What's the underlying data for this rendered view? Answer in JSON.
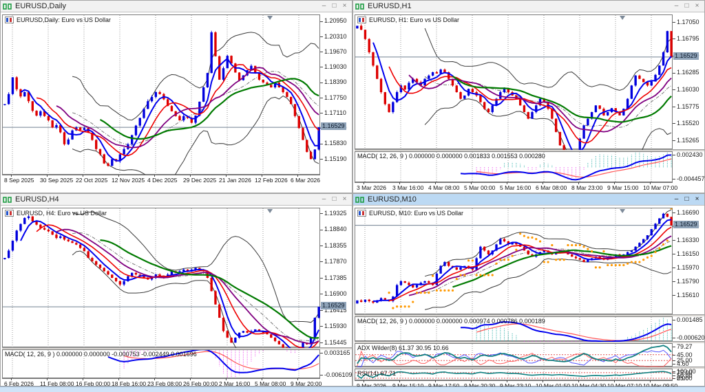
{
  "window_controls": {
    "minimize": "–",
    "maximize": "□",
    "close": "×"
  },
  "panels": [
    {
      "title": "EURUSD,Daily",
      "legend": "EURUSD,Daily:  Euro vs US Dollar",
      "active": false
    },
    {
      "title": "EURUSD,H1",
      "legend": "EURUSD, H1:  Euro vs US Dollar",
      "active": false
    },
    {
      "title": "EURUSD,H4",
      "legend": "EURUSD, H4:  Euro vs US Dollar",
      "active": false
    },
    {
      "title": "EURUSD,M10",
      "legend": "EURUSD, M10:  Euro vs US Dollar",
      "active": true
    }
  ],
  "colors": {
    "up_candle": "#0000dd",
    "down_candle": "#dd0000",
    "ma_fast": "#0000ee",
    "ma_mid": "#ee0000",
    "ma_slow1": "#800080",
    "ma_slow2": "#007a00",
    "envelope": "#3a3a3a",
    "sar": "#ff9900",
    "macd_line": "#0000ee",
    "macd_signal": "#ff5555",
    "hist_pos": "#18a8a0",
    "hist_neg": "#ee44ee",
    "adx_main": "#0f8080",
    "adx_plus": "#5858ff",
    "adx_minus": "#ff6060",
    "rsi": "#0f8080",
    "level_line": "#e05050",
    "price_line": "#708090",
    "price_tag_bg": "#8fa3b8",
    "grid": "#9a9a9a",
    "active_titlebar": "#bcd9f3"
  },
  "chart_data": [
    {
      "type": "candlestick",
      "symbol": "EURUSD",
      "timeframe": "Daily",
      "title": "EURUSD,Daily:  Euro vs US Dollar",
      "ylim": [
        1.1452,
        1.2122
      ],
      "y_ticks": [
        "1.20950",
        "1.20310",
        "1.19670",
        "1.19030",
        "1.18390",
        "1.17750",
        "1.17110",
        "1.16470",
        "1.15830",
        "1.15190"
      ],
      "x_ticks": [
        "8 Sep 2025",
        "30 Sep 2025",
        "22 Oct 2025",
        "12 Nov 2025",
        "4 Dec 2025",
        "29 Dec 2025",
        "21 Jan 2026",
        "12 Feb 2026",
        "6 Mar 2026"
      ],
      "current_price": 1.16529,
      "current_price_label": "1.16529",
      "sar": false,
      "closes": [
        1.175,
        1.1792,
        1.1862,
        1.1812,
        1.1782,
        1.18,
        1.1762,
        1.1722,
        1.1702,
        1.172,
        1.17,
        1.1682,
        1.1652,
        1.1662,
        1.1632,
        1.1582,
        1.1602,
        1.164,
        1.1652,
        1.1642,
        1.165,
        1.163,
        1.16,
        1.1562,
        1.154,
        1.1502,
        1.1492,
        1.152,
        1.1512,
        1.154,
        1.1562,
        1.1582,
        1.162,
        1.166,
        1.1692,
        1.173,
        1.1762,
        1.178,
        1.18,
        1.1792,
        1.177,
        1.1742,
        1.172,
        1.17,
        1.1682,
        1.17,
        1.1692,
        1.1672,
        1.1702,
        1.176,
        1.182,
        1.188,
        1.205,
        1.195,
        1.1852,
        1.19,
        1.1952,
        1.192,
        1.1882,
        1.185,
        1.187,
        1.1892,
        1.191,
        1.188,
        1.1852,
        1.184,
        1.183,
        1.182,
        1.184,
        1.182,
        1.18,
        1.178,
        1.175,
        1.17,
        1.165,
        1.16,
        1.155,
        1.152,
        1.156,
        1.16529
      ],
      "indicators": []
    },
    {
      "type": "candlestick",
      "symbol": "EURUSD",
      "timeframe": "H1",
      "title": "EURUSD, H1:  Euro vs US Dollar",
      "ylim": [
        1.1513,
        1.1716
      ],
      "y_ticks": [
        "1.17050",
        "1.16795",
        "1.16540",
        "1.16285",
        "1.16030",
        "1.15775",
        "1.15520",
        "1.15265"
      ],
      "x_ticks": [
        "3 Mar 2026",
        "3 Mar 16:00",
        "4 Mar 08:00",
        "5 Mar 00:00",
        "5 Mar 16:00",
        "6 Mar 08:00",
        "8 Mar 23:00",
        "9 Mar 15:00",
        "10 Mar 07:00"
      ],
      "current_price": 1.16529,
      "current_price_label": "1.16529",
      "sar": false,
      "closes": [
        1.17,
        1.1694,
        1.168,
        1.166,
        1.164,
        1.162,
        1.16,
        1.1582,
        1.157,
        1.1585,
        1.16,
        1.161,
        1.1604,
        1.1614,
        1.162,
        1.1615,
        1.161,
        1.162,
        1.1625,
        1.163,
        1.1628,
        1.1634,
        1.163,
        1.162,
        1.161,
        1.16,
        1.159,
        1.1595,
        1.1605,
        1.16,
        1.1595,
        1.1585,
        1.1575,
        1.157,
        1.158,
        1.159,
        1.16,
        1.1605,
        1.16,
        1.1595,
        1.159,
        1.158,
        1.157,
        1.156,
        1.157,
        1.158,
        1.159,
        1.1585,
        1.1575,
        1.156,
        1.154,
        1.152,
        1.151,
        1.15,
        1.1495,
        1.151,
        1.153,
        1.155,
        1.156,
        1.157,
        1.158,
        1.1575,
        1.1565,
        1.157,
        1.1576,
        1.157,
        1.1565,
        1.1575,
        1.159,
        1.161,
        1.1625,
        1.162,
        1.1615,
        1.161,
        1.1616,
        1.1626,
        1.164,
        1.166,
        1.1692,
        1.16529
      ],
      "indicators": [
        {
          "kind": "macd",
          "label": "MACD( 12, 26, 9 ) 0.000000 0.000000 0.001833 0.001553 0.000280",
          "scale": [
            "0.002430",
            "-0.004457"
          ]
        }
      ]
    },
    {
      "type": "candlestick",
      "symbol": "EURUSD",
      "timeframe": "H4",
      "title": "EURUSD, H4:  Euro vs US Dollar",
      "ylim": [
        1.1529,
        1.1949
      ],
      "y_ticks": [
        "1.19325",
        "1.18840",
        "1.18355",
        "1.17870",
        "1.17385",
        "1.16900",
        "1.16415",
        "1.15930",
        "1.15445"
      ],
      "x_ticks": [
        "6 Feb 2026",
        "11 Feb 08:00",
        "16 Feb 00:00",
        "18 Feb 16:00",
        "23 Feb 08:00",
        "26 Feb 00:00",
        "2 Mar 16:00",
        "5 Mar 08:00",
        "9 Mar 20:00"
      ],
      "current_price": 1.16529,
      "current_price_label": "1.16529",
      "sar": false,
      "closes": [
        1.18,
        1.1822,
        1.1852,
        1.1882,
        1.1902,
        1.192,
        1.1925,
        1.191,
        1.19,
        1.189,
        1.1885,
        1.188,
        1.187,
        1.186,
        1.1865,
        1.1855,
        1.185,
        1.1845,
        1.184,
        1.183,
        1.182,
        1.18,
        1.179,
        1.178,
        1.177,
        1.176,
        1.175,
        1.174,
        1.173,
        1.172,
        1.173,
        1.1745,
        1.1755,
        1.175,
        1.1745,
        1.174,
        1.1735,
        1.174,
        1.175,
        1.1745,
        1.174,
        1.175,
        1.176,
        1.1755,
        1.176,
        1.1765,
        1.176,
        1.1765,
        1.177,
        1.1765,
        1.176,
        1.174,
        1.17,
        1.166,
        1.162,
        1.158,
        1.156,
        1.1545,
        1.156,
        1.1575,
        1.158,
        1.1575,
        1.158,
        1.1585,
        1.158,
        1.1575,
        1.157,
        1.156,
        1.155,
        1.154,
        1.153,
        1.151,
        1.15,
        1.1495,
        1.153,
        1.1545,
        1.154,
        1.156,
        1.162,
        1.16529
      ],
      "indicators": [
        {
          "kind": "macd",
          "label": "MACD( 12, 26, 9 ) 0.000000 0.000000 -0.000753 -0.002449 0.001696",
          "scale": [
            "0.003165",
            "-0.006109"
          ]
        }
      ]
    },
    {
      "type": "candlestick",
      "symbol": "EURUSD",
      "timeframe": "M10",
      "title": "EURUSD, M10:  Euro vs US Dollar",
      "ylim": [
        1.1536,
        1.1675
      ],
      "y_ticks": [
        "1.16690",
        "1.16510",
        "1.16330",
        "1.16150",
        "1.15970",
        "1.15790",
        "1.15610"
      ],
      "x_ticks": [
        "9 Mar 2026",
        "9 Mar 15:10",
        "9 Mar 17:50",
        "9 Mar 20:30",
        "9 Mar 23:10",
        "10 Mar 01:50",
        "10 Mar 04:30",
        "10 Mar 07:10",
        "10 Mar 09:50"
      ],
      "current_price": 1.16529,
      "current_price_label": "1.16529",
      "sar": true,
      "closes": [
        1.1555,
        1.1553,
        1.1556,
        1.1554,
        1.1552,
        1.1555,
        1.1558,
        1.1556,
        1.1554,
        1.156,
        1.1575,
        1.158,
        1.1578,
        1.1575,
        1.1572,
        1.1575,
        1.1578,
        1.158,
        1.1578,
        1.1575,
        1.159,
        1.16,
        1.1605,
        1.16,
        1.1598,
        1.1595,
        1.1598,
        1.16,
        1.1597,
        1.1595,
        1.161,
        1.1625,
        1.162,
        1.1615,
        1.162,
        1.1628,
        1.1635,
        1.1632,
        1.1628,
        1.163,
        1.1628,
        1.1625,
        1.162,
        1.1615,
        1.1612,
        1.1615,
        1.1618,
        1.162,
        1.1618,
        1.1615,
        1.1618,
        1.162,
        1.1618,
        1.1615,
        1.1612,
        1.161,
        1.1608,
        1.1605,
        1.1608,
        1.161,
        1.1612,
        1.161,
        1.1608,
        1.161,
        1.1612,
        1.1615,
        1.1612,
        1.1615,
        1.1618,
        1.162,
        1.1625,
        1.163,
        1.1635,
        1.164,
        1.1648,
        1.1655,
        1.1662,
        1.1668,
        1.1664,
        1.16529
      ],
      "indicators": [
        {
          "kind": "macd",
          "label": "MACD( 12, 26, 9 ) 0.000000 0.000000 0.000974 0.000786 0.000189",
          "scale": [
            "0.001485",
            "-0.000620"
          ]
        },
        {
          "kind": "adx",
          "label": "ADX Wilder(8) 61.37 30.95 10.66",
          "scale": [
            "79.27",
            "45.00",
            "25.00",
            "4.60"
          ],
          "levels": [
            45,
            25
          ]
        },
        {
          "kind": "rsi",
          "label": "RSI(14) 67.71",
          "scale": [
            "100.00",
            "75.00",
            "50.00",
            "25.00",
            "0.00"
          ],
          "levels": [
            75,
            25
          ]
        }
      ]
    }
  ]
}
